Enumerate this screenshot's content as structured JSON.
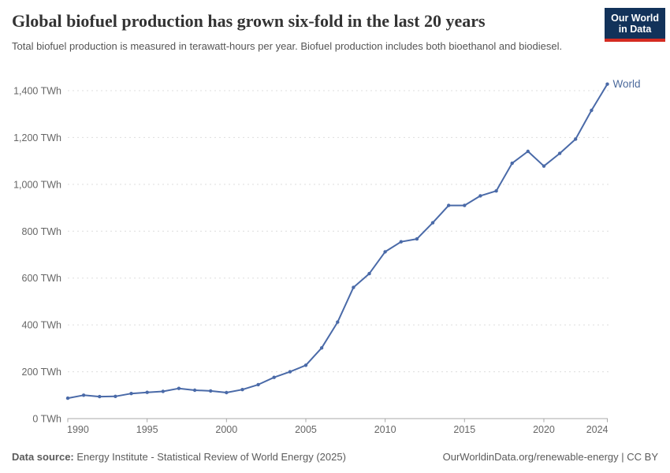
{
  "header": {
    "title": "Global biofuel production has grown six-fold in the last 20 years",
    "subtitle": "Total biofuel production is measured in terawatt-hours per year. Biofuel production includes both bioethanol and biodiesel."
  },
  "logo": {
    "line1": "Our World",
    "line2": "in Data"
  },
  "chart_data": {
    "type": "line",
    "title": "Global biofuel production has grown six-fold in the last 20 years",
    "unit": "TWh",
    "xlabel": "",
    "ylabel": "TWh",
    "xlim": [
      1990,
      2024
    ],
    "ylim": [
      0,
      1400
    ],
    "grid": "horizontal dashed",
    "legend": "end-of-line label",
    "xticks": [
      1990,
      1995,
      2000,
      2005,
      2010,
      2015,
      2020,
      2024
    ],
    "yticks": [
      0,
      200,
      400,
      600,
      800,
      1000,
      1200,
      1400
    ],
    "series": [
      {
        "name": "World",
        "x": [
          1990,
          1991,
          1992,
          1993,
          1994,
          1995,
          1996,
          1997,
          1998,
          1999,
          2000,
          2001,
          2002,
          2003,
          2004,
          2005,
          2006,
          2007,
          2008,
          2009,
          2010,
          2011,
          2012,
          2013,
          2014,
          2015,
          2016,
          2017,
          2018,
          2019,
          2020,
          2021,
          2022,
          2023,
          2024
        ],
        "values": [
          87,
          100,
          94,
          95,
          107,
          112,
          116,
          129,
          121,
          118,
          111,
          124,
          145,
          176,
          200,
          228,
          302,
          412,
          560,
          619,
          712,
          755,
          767,
          836,
          910,
          910,
          951,
          972,
          1090,
          1141,
          1078,
          1132,
          1193,
          1316,
          1428
        ]
      }
    ]
  },
  "footer": {
    "source_label": "Data source:",
    "source_text": "Energy Institute - Statistical Review of World Energy (2025)",
    "license_text": "OurWorldinData.org/renewable-energy | CC BY"
  },
  "colors": {
    "line": "#4A6AA8",
    "series_label": "#4C6A9C",
    "logo_bg": "#12325A",
    "logo_accent": "#D42B21",
    "grid": "#DDDDDD",
    "axis": "#A9A9A9",
    "tick_text": "#666666"
  }
}
